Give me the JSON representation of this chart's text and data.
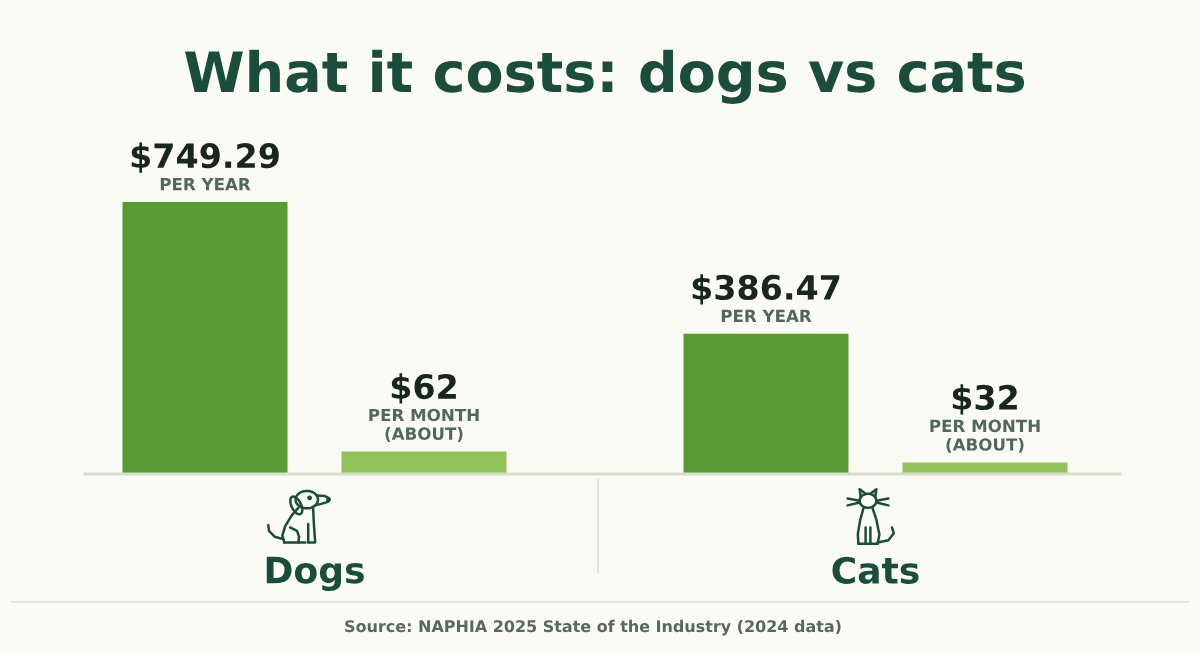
{
  "chart_data": {
    "type": "bar",
    "title": "What it costs: dogs vs cats",
    "categories": [
      "Dogs",
      "Cats"
    ],
    "series": [
      {
        "name": "PER YEAR",
        "color": "#5a9a35",
        "values": [
          749.29,
          386.47
        ],
        "value_labels": [
          "$749.29",
          "$386.47"
        ]
      },
      {
        "name": "PER MONTH\n(ABOUT)",
        "color": "#92c25a",
        "values": [
          62,
          32
        ],
        "value_labels": [
          "$62",
          "$32"
        ]
      }
    ],
    "annotations": [
      "Source: NAPHIA 2025 State of the Industry (2024 data)"
    ]
  }
}
